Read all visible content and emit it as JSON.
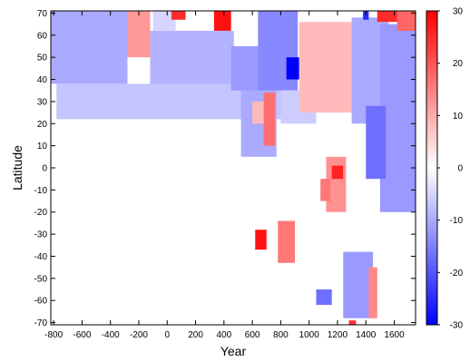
{
  "chart_data": {
    "type": "heatmap",
    "title": "",
    "xlabel": "Year",
    "ylabel": "Latitude",
    "xlim": [
      -820,
      1750
    ],
    "ylim": [
      -71,
      71
    ],
    "xticks": [
      -800,
      -600,
      -400,
      -200,
      0,
      200,
      400,
      600,
      800,
      1000,
      1200,
      1400,
      1600
    ],
    "xtick_labels": [
      "-800",
      "-600",
      "-400",
      "-200",
      "0",
      "200",
      "400",
      "600",
      "800",
      "1000",
      "1200",
      "1400",
      "1600"
    ],
    "yticks": [
      70,
      60,
      50,
      40,
      30,
      20,
      10,
      0,
      -10,
      -20,
      -30,
      -40,
      -50,
      -60,
      -70
    ],
    "ytick_labels": [
      "70",
      "60",
      "50",
      "40",
      "30",
      "20",
      "10",
      "0",
      "-10",
      "-20",
      "-30",
      "-40",
      "-50",
      "-60",
      "-70"
    ],
    "colorbar": {
      "range": [
        -30,
        30
      ],
      "ticks": [
        30,
        20,
        10,
        0,
        -10,
        -20,
        -30
      ],
      "tick_labels": [
        "30",
        "20",
        "10",
        "0",
        "-10",
        "-20",
        "-30"
      ],
      "colors": {
        "low": "#0000ff",
        "mid": "#ffffff",
        "high": "#ff0000"
      }
    },
    "grid": false,
    "regions": [
      {
        "x": [
          -820,
          -280
        ],
        "y": [
          38,
          71
        ],
        "value": -10
      },
      {
        "x": [
          -780,
          820
        ],
        "y": [
          22,
          38
        ],
        "value": -7
      },
      {
        "x": [
          -280,
          -120
        ],
        "y": [
          50,
          71
        ],
        "value": 12
      },
      {
        "x": [
          -120,
          470
        ],
        "y": [
          38,
          62
        ],
        "value": -9
      },
      {
        "x": [
          -100,
          60
        ],
        "y": [
          62,
          71
        ],
        "value": -5
      },
      {
        "x": [
          30,
          130
        ],
        "y": [
          67,
          71
        ],
        "value": 25
      },
      {
        "x": [
          330,
          450
        ],
        "y": [
          62,
          71
        ],
        "value": 28
      },
      {
        "x": [
          450,
          670
        ],
        "y": [
          35,
          55
        ],
        "value": -12
      },
      {
        "x": [
          640,
          920
        ],
        "y": [
          35,
          71
        ],
        "value": -14
      },
      {
        "x": [
          840,
          930
        ],
        "y": [
          40,
          50
        ],
        "value": -30
      },
      {
        "x": [
          800,
          1050
        ],
        "y": [
          20,
          35
        ],
        "value": -6
      },
      {
        "x": [
          930,
          1350
        ],
        "y": [
          25,
          66
        ],
        "value": 8
      },
      {
        "x": [
          1300,
          1560
        ],
        "y": [
          20,
          68
        ],
        "value": -10
      },
      {
        "x": [
          1500,
          1750
        ],
        "y": [
          -20,
          65
        ],
        "value": -12
      },
      {
        "x": [
          1400,
          1540
        ],
        "y": [
          -5,
          28
        ],
        "value": -17
      },
      {
        "x": [
          1480,
          1640
        ],
        "y": [
          66,
          71
        ],
        "value": 25
      },
      {
        "x": [
          1620,
          1750
        ],
        "y": [
          62,
          71
        ],
        "value": 18
      },
      {
        "x": [
          1380,
          1420
        ],
        "y": [
          67,
          71
        ],
        "value": -25
      },
      {
        "x": [
          520,
          770
        ],
        "y": [
          5,
          35
        ],
        "value": -10
      },
      {
        "x": [
          600,
          700
        ],
        "y": [
          20,
          30
        ],
        "value": 8
      },
      {
        "x": [
          680,
          760
        ],
        "y": [
          10,
          34
        ],
        "value": 17
      },
      {
        "x": [
          1120,
          1260
        ],
        "y": [
          -20,
          5
        ],
        "value": 13
      },
      {
        "x": [
          1160,
          1240
        ],
        "y": [
          -5,
          1
        ],
        "value": 26
      },
      {
        "x": [
          1080,
          1150
        ],
        "y": [
          -15,
          -5
        ],
        "value": 16
      },
      {
        "x": [
          620,
          700
        ],
        "y": [
          -37,
          -28
        ],
        "value": 28
      },
      {
        "x": [
          780,
          900
        ],
        "y": [
          -43,
          -24
        ],
        "value": 16
      },
      {
        "x": [
          1050,
          1160
        ],
        "y": [
          -62,
          -55
        ],
        "value": -17
      },
      {
        "x": [
          1240,
          1450
        ],
        "y": [
          -68,
          -38
        ],
        "value": -12
      },
      {
        "x": [
          1420,
          1480
        ],
        "y": [
          -68,
          -45
        ],
        "value": 14
      },
      {
        "x": [
          1280,
          1330
        ],
        "y": [
          -71,
          -69
        ],
        "value": 24
      }
    ]
  }
}
